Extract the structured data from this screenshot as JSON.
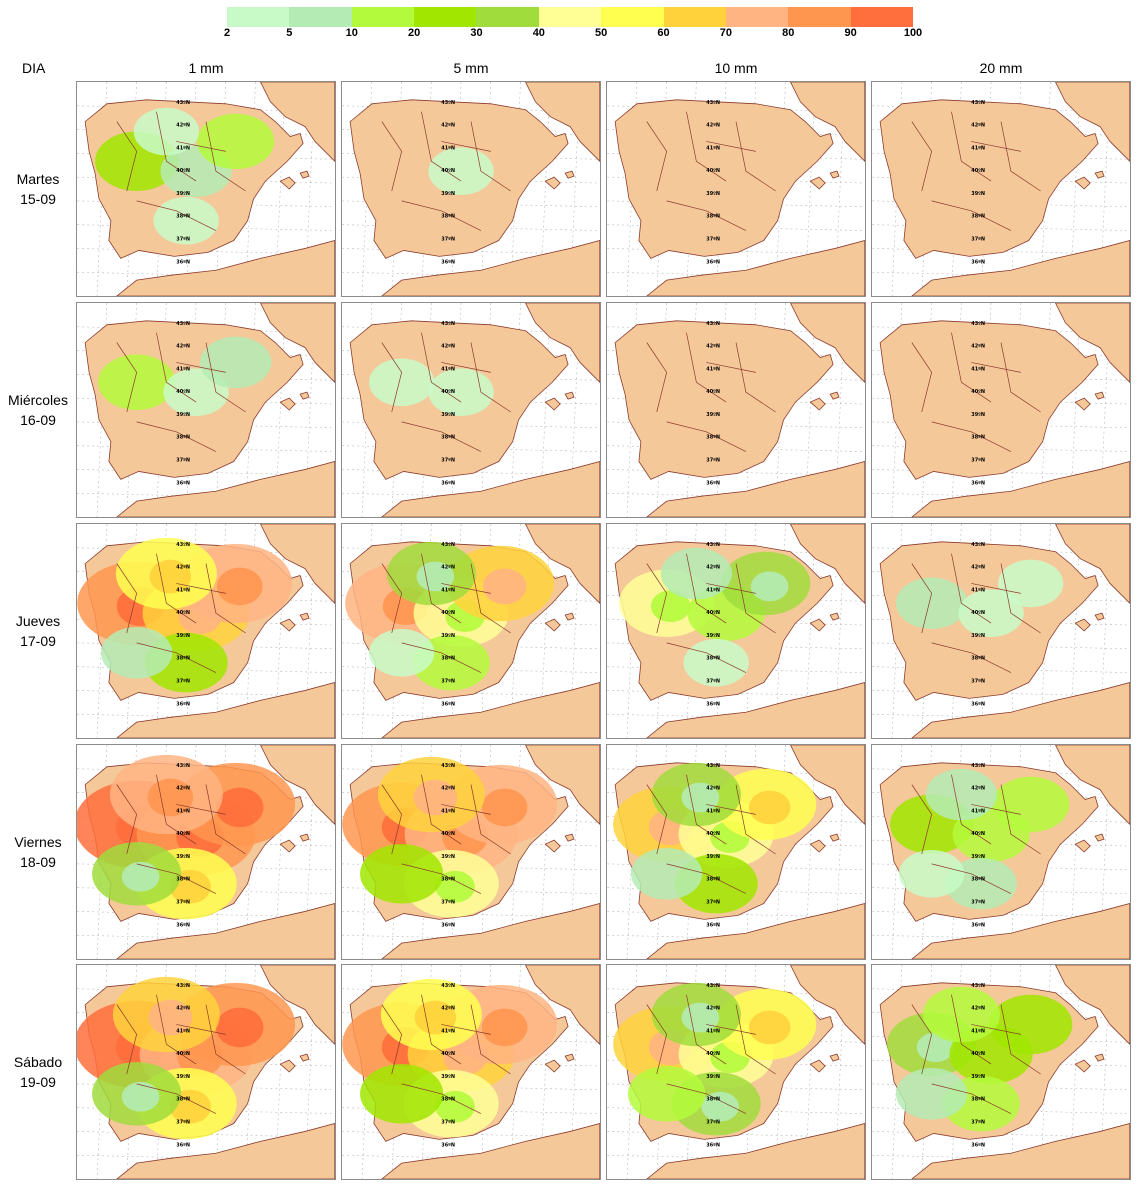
{
  "legend": {
    "labels": [
      "2",
      "5",
      "10",
      "20",
      "30",
      "40",
      "50",
      "60",
      "70",
      "80",
      "90",
      "100"
    ],
    "colors": [
      "#c8fac8",
      "#b4ebb4",
      "#b4fa3c",
      "#a0e600",
      "#a0dc3c",
      "#ffff96",
      "#ffff50",
      "#ffd23c",
      "#ffb482",
      "#ff9650",
      "#ff6e3c"
    ]
  },
  "header": {
    "dia_label": "DIA"
  },
  "thresholds": [
    "1 mm",
    "5 mm",
    "10 mm",
    "20 mm"
  ],
  "days": [
    {
      "name": "Martes",
      "date": "15-09"
    },
    {
      "name": "Miércoles",
      "date": "16-09"
    },
    {
      "name": "Jueves",
      "date": "17-09"
    },
    {
      "name": "Viernes",
      "date": "18-09"
    },
    {
      "name": "Sábado",
      "date": "19-09"
    }
  ],
  "latitude_labels": [
    "43ºN",
    "42ºN",
    "41ºN",
    "40ºN",
    "39ºN",
    "38ºN",
    "37ºN",
    "36ºN"
  ],
  "map_colors": {
    "land": "#f5c89a",
    "sea": "#ffffff",
    "borders": "#8b3a2a",
    "graticule": "#b8b8b8"
  },
  "probability_grid": {
    "note_levels": "probability classes 0 (none) to 11 (90-100) per panel",
    "panels": [
      [
        [
          4,
          2,
          1,
          0
        ],
        [
          0,
          1,
          0,
          0
        ],
        [
          0,
          0,
          0,
          0
        ],
        [
          0,
          0,
          0,
          0
        ]
      ],
      [
        [
          3,
          1,
          0,
          0
        ],
        [
          1,
          1,
          0,
          0
        ],
        [
          0,
          0,
          0,
          0
        ],
        [
          0,
          0,
          0,
          0
        ]
      ],
      [
        [
          10,
          8,
          4,
          2
        ],
        [
          9,
          6,
          3,
          1
        ],
        [
          6,
          3,
          1,
          0
        ],
        [
          2,
          1,
          0,
          0
        ]
      ],
      [
        [
          11,
          10,
          7,
          5
        ],
        [
          10,
          9,
          6,
          4
        ],
        [
          8,
          6,
          4,
          2
        ],
        [
          4,
          3,
          2,
          1
        ]
      ],
      [
        [
          11,
          9,
          7,
          5
        ],
        [
          10,
          8,
          6,
          4
        ],
        [
          8,
          6,
          5,
          3
        ],
        [
          5,
          4,
          3,
          2
        ]
      ]
    ]
  }
}
